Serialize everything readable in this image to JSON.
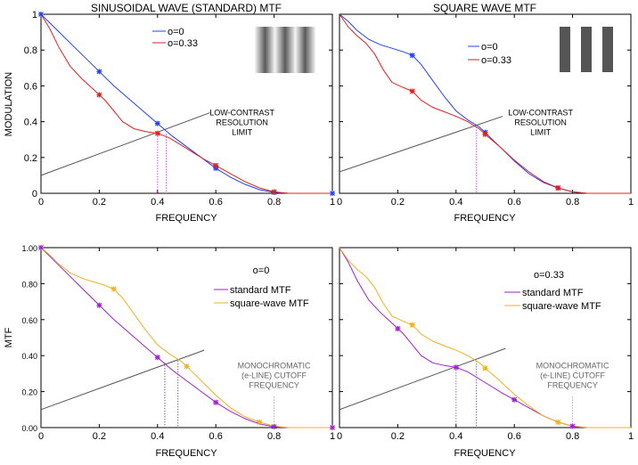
{
  "chart_data": [
    {
      "type": "line",
      "title": "SINUSOIDAL WAVE (STANDARD) MTF",
      "xlabel": "FREQUENCY",
      "ylabel": "MODULATION",
      "xlim": [
        0,
        1
      ],
      "ylim": [
        0,
        1
      ],
      "xticks": [
        "0",
        "0.2",
        "0.4",
        "0.6",
        "0.8",
        "1"
      ],
      "yticks": [
        "0",
        "0.2",
        "0.4",
        "0.6",
        "0.8",
        "1"
      ],
      "legend": {
        "placement": "top-right",
        "entries": [
          "o=0",
          "o=0.33"
        ]
      },
      "series": [
        {
          "name": "o=0",
          "color": "#2040ff",
          "x": [
            0,
            0.05,
            0.1,
            0.15,
            0.2,
            0.25,
            0.3,
            0.35,
            0.4,
            0.45,
            0.5,
            0.55,
            0.6,
            0.65,
            0.7,
            0.75,
            0.8,
            0.85,
            0.9,
            0.95,
            1.0
          ],
          "y": [
            1.0,
            0.92,
            0.84,
            0.76,
            0.68,
            0.6,
            0.53,
            0.46,
            0.39,
            0.32,
            0.26,
            0.2,
            0.14,
            0.09,
            0.05,
            0.02,
            0.005,
            0.0,
            0.0,
            0.0,
            0.0
          ]
        },
        {
          "name": "o=0.33",
          "color": "#e02020",
          "x": [
            0,
            0.03,
            0.06,
            0.1,
            0.14,
            0.18,
            0.2,
            0.22,
            0.25,
            0.28,
            0.32,
            0.36,
            0.4,
            0.44,
            0.48,
            0.52,
            0.56,
            0.6,
            0.65,
            0.7,
            0.75,
            0.8,
            0.85,
            0.9,
            1.0
          ],
          "y": [
            1.0,
            0.92,
            0.82,
            0.71,
            0.64,
            0.58,
            0.55,
            0.52,
            0.46,
            0.4,
            0.36,
            0.345,
            0.335,
            0.31,
            0.27,
            0.23,
            0.19,
            0.155,
            0.11,
            0.065,
            0.03,
            0.008,
            0.0,
            0.0,
            0.0
          ]
        }
      ],
      "markers": [
        {
          "series": "o=0",
          "x": [
            0,
            0.2,
            0.4,
            0.6,
            0.8,
            1.0
          ],
          "y": [
            1.0,
            0.68,
            0.39,
            0.14,
            0.005,
            0.0
          ]
        },
        {
          "series": "o=0.33",
          "x": [
            0.2,
            0.4,
            0.6,
            0.8
          ],
          "y": [
            0.55,
            0.335,
            0.155,
            0.008
          ]
        }
      ],
      "reference_line": {
        "x": [
          0,
          0.58
        ],
        "y": [
          0.1,
          0.45
        ]
      },
      "drop_lines": [
        {
          "x": 0.4,
          "y": 0.335,
          "color": "#c000c0"
        },
        {
          "x": 0.43,
          "y": 0.33,
          "color": "#c000c0"
        }
      ],
      "annotation": {
        "lines": [
          "LOW-CONTRAST",
          "RESOLUTION",
          "LIMIT"
        ],
        "x": 0.69,
        "y": 0.435
      }
    },
    {
      "type": "line",
      "title": "SQUARE WAVE MTF",
      "xlabel": "FREQUENCY",
      "ylabel": "",
      "xlim": [
        0,
        1
      ],
      "ylim": [
        0,
        1
      ],
      "xticks": [
        "0",
        "0.2",
        "0.4",
        "0.6",
        "0.8",
        "1"
      ],
      "yticks": [
        "0",
        "0.2",
        "0.4",
        "0.6",
        "0.8",
        "1"
      ],
      "legend": {
        "placement": "top-right",
        "entries": [
          "o=0",
          "o=0.33"
        ]
      },
      "series": [
        {
          "name": "o=0",
          "color": "#2040ff",
          "x": [
            0,
            0.03,
            0.06,
            0.1,
            0.14,
            0.18,
            0.22,
            0.25,
            0.28,
            0.32,
            0.36,
            0.4,
            0.44,
            0.48,
            0.5,
            0.55,
            0.6,
            0.65,
            0.7,
            0.75,
            0.8,
            0.85,
            1.0
          ],
          "y": [
            1.0,
            0.96,
            0.91,
            0.86,
            0.83,
            0.81,
            0.79,
            0.77,
            0.72,
            0.63,
            0.54,
            0.46,
            0.41,
            0.37,
            0.34,
            0.26,
            0.18,
            0.11,
            0.06,
            0.03,
            0.008,
            0.0,
            0.0
          ]
        },
        {
          "name": "o=0.33",
          "color": "#e02020",
          "x": [
            0,
            0.03,
            0.06,
            0.09,
            0.12,
            0.15,
            0.18,
            0.22,
            0.25,
            0.28,
            0.32,
            0.36,
            0.4,
            0.44,
            0.48,
            0.5,
            0.55,
            0.6,
            0.65,
            0.7,
            0.75,
            0.8,
            0.85,
            1.0
          ],
          "y": [
            1.0,
            0.93,
            0.88,
            0.84,
            0.78,
            0.69,
            0.62,
            0.59,
            0.57,
            0.52,
            0.48,
            0.455,
            0.43,
            0.4,
            0.36,
            0.33,
            0.26,
            0.185,
            0.12,
            0.065,
            0.03,
            0.008,
            0.0,
            0.0
          ]
        }
      ],
      "markers": [
        {
          "series": "o=0",
          "x": [
            0.25,
            0.5,
            0.75
          ],
          "y": [
            0.77,
            0.34,
            0.03
          ]
        },
        {
          "series": "o=0.33",
          "x": [
            0.25,
            0.5,
            0.75
          ],
          "y": [
            0.57,
            0.33,
            0.03
          ]
        }
      ],
      "reference_line": {
        "x": [
          0,
          0.56
        ],
        "y": [
          0.12,
          0.43
        ]
      },
      "drop_lines": [
        {
          "x": 0.47,
          "y": 0.37,
          "color": "#c000c0"
        }
      ],
      "annotation": {
        "lines": [
          "LOW-CONTRAST",
          "RESOLUTION",
          "LIMIT"
        ],
        "x": 0.69,
        "y": 0.435
      }
    },
    {
      "type": "line",
      "title": "",
      "xlabel": "FREQUENCY",
      "ylabel": "MTF",
      "xlim": [
        0,
        1
      ],
      "ylim": [
        0,
        1
      ],
      "xticks": [
        "0",
        "0.2",
        "0.4",
        "0.6",
        "0.8",
        "1"
      ],
      "yticks": [
        "0.00",
        "0.20",
        "0.40",
        "0.60",
        "0.80",
        "1.00"
      ],
      "legend": {
        "placement": "top-right",
        "heading": "o=0",
        "entries": [
          "standard MTF",
          "square-wave MTF"
        ]
      },
      "series": [
        {
          "name": "standard MTF",
          "color": "#a020d0",
          "x": [
            0,
            0.05,
            0.1,
            0.15,
            0.2,
            0.25,
            0.3,
            0.35,
            0.4,
            0.45,
            0.5,
            0.55,
            0.6,
            0.65,
            0.7,
            0.75,
            0.8,
            0.85,
            0.9,
            0.95,
            1.0
          ],
          "y": [
            1.0,
            0.92,
            0.84,
            0.76,
            0.68,
            0.6,
            0.53,
            0.46,
            0.39,
            0.32,
            0.26,
            0.2,
            0.14,
            0.09,
            0.05,
            0.02,
            0.005,
            0.0,
            0.0,
            0.0,
            0.0
          ]
        },
        {
          "name": "square-wave MTF",
          "color": "#f0b020",
          "x": [
            0,
            0.03,
            0.06,
            0.1,
            0.14,
            0.18,
            0.22,
            0.25,
            0.28,
            0.32,
            0.36,
            0.4,
            0.44,
            0.48,
            0.5,
            0.55,
            0.6,
            0.65,
            0.7,
            0.75,
            0.8,
            0.85,
            1.0
          ],
          "y": [
            1.0,
            0.96,
            0.91,
            0.86,
            0.83,
            0.81,
            0.79,
            0.77,
            0.72,
            0.63,
            0.54,
            0.46,
            0.41,
            0.37,
            0.34,
            0.26,
            0.18,
            0.11,
            0.06,
            0.03,
            0.008,
            0.0,
            0.0
          ]
        }
      ],
      "markers": [
        {
          "series": "standard MTF",
          "x": [
            0,
            0.2,
            0.4,
            0.6,
            0.8,
            1.0
          ],
          "y": [
            1.0,
            0.68,
            0.39,
            0.14,
            0.005,
            0.0
          ]
        },
        {
          "series": "square-wave MTF",
          "x": [
            0.25,
            0.5,
            0.75
          ],
          "y": [
            0.77,
            0.34,
            0.03
          ]
        }
      ],
      "reference_line": {
        "x": [
          0,
          0.56
        ],
        "y": [
          0.1,
          0.43
        ]
      },
      "drop_lines": [
        {
          "x": 0.425,
          "y": 0.36,
          "color": "#202080"
        },
        {
          "x": 0.47,
          "y": 0.37,
          "color": "#202080"
        },
        {
          "x": 0.8,
          "y": 0.17,
          "color": "#808080"
        }
      ],
      "annotation": {
        "lines": [
          "MONOCHROMATIC",
          "(e-LINE) CUTOFF",
          "FREQUENCY"
        ],
        "x": 0.8,
        "y": 0.33
      }
    },
    {
      "type": "line",
      "title": "",
      "xlabel": "FREQUENCY",
      "ylabel": "",
      "xlim": [
        0,
        1
      ],
      "ylim": [
        0,
        1
      ],
      "xticks": [
        "0",
        "0.2",
        "0.4",
        "0.6",
        "0.8",
        "1"
      ],
      "yticks": [
        "0.00",
        "0.20",
        "0.40",
        "0.60",
        "0.80",
        "1.00"
      ],
      "legend": {
        "placement": "top-right",
        "heading": "o=0.33",
        "entries": [
          "standard MTF",
          "square-wave MTF"
        ]
      },
      "series": [
        {
          "name": "standard MTF",
          "color": "#a020d0",
          "x": [
            0,
            0.03,
            0.06,
            0.1,
            0.14,
            0.18,
            0.2,
            0.22,
            0.25,
            0.28,
            0.32,
            0.36,
            0.4,
            0.44,
            0.48,
            0.52,
            0.56,
            0.6,
            0.65,
            0.7,
            0.75,
            0.8,
            0.85,
            0.9,
            1.0
          ],
          "y": [
            1.0,
            0.92,
            0.82,
            0.71,
            0.64,
            0.58,
            0.55,
            0.52,
            0.46,
            0.4,
            0.36,
            0.345,
            0.335,
            0.31,
            0.27,
            0.23,
            0.19,
            0.155,
            0.11,
            0.065,
            0.03,
            0.008,
            0.0,
            0.0,
            0.0
          ]
        },
        {
          "name": "square-wave MTF",
          "color": "#f0b020",
          "x": [
            0,
            0.03,
            0.06,
            0.09,
            0.12,
            0.15,
            0.18,
            0.22,
            0.25,
            0.28,
            0.32,
            0.36,
            0.4,
            0.44,
            0.48,
            0.5,
            0.55,
            0.6,
            0.65,
            0.7,
            0.75,
            0.8,
            0.85,
            1.0
          ],
          "y": [
            1.0,
            0.93,
            0.88,
            0.84,
            0.78,
            0.69,
            0.62,
            0.59,
            0.57,
            0.52,
            0.48,
            0.455,
            0.43,
            0.4,
            0.36,
            0.33,
            0.26,
            0.185,
            0.12,
            0.065,
            0.03,
            0.008,
            0.0,
            0.0
          ]
        }
      ],
      "markers": [
        {
          "series": "standard MTF",
          "x": [
            0.2,
            0.4,
            0.6,
            0.8
          ],
          "y": [
            0.55,
            0.335,
            0.155,
            0.008
          ]
        },
        {
          "series": "square-wave MTF",
          "x": [
            0.25,
            0.5,
            0.75
          ],
          "y": [
            0.57,
            0.33,
            0.03
          ]
        }
      ],
      "reference_line": {
        "x": [
          0,
          0.57
        ],
        "y": [
          0.1,
          0.44
        ]
      },
      "drop_lines": [
        {
          "x": 0.4,
          "y": 0.335,
          "color": "#c000c0"
        },
        {
          "x": 0.47,
          "y": 0.37,
          "color": "#202080"
        },
        {
          "x": 0.8,
          "y": 0.17,
          "color": "#808080"
        }
      ],
      "annotation": {
        "lines": [
          "MONOCHROMATIC",
          "(e-LINE) CUTOFF",
          "FREQUENCY"
        ],
        "x": 0.8,
        "y": 0.33
      }
    }
  ]
}
